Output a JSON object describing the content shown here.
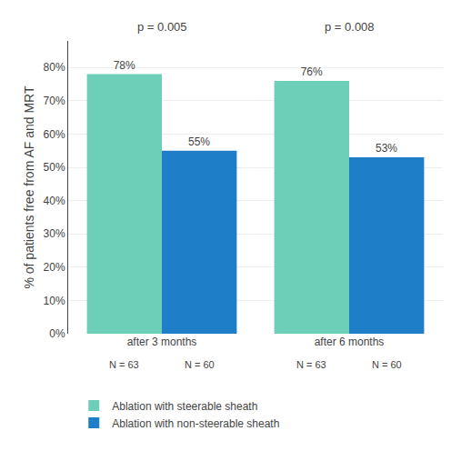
{
  "chart_data": {
    "type": "bar",
    "categories": [
      "after 3 months",
      "after 6 months"
    ],
    "series": [
      {
        "name": "Ablation with steerable sheath",
        "color": "#6DCFB8",
        "values": [
          78,
          76
        ],
        "value_labels": [
          "78%",
          "76%"
        ],
        "n_labels": [
          "N = 63",
          "N = 63"
        ]
      },
      {
        "name": "Ablation with non-steerable sheath",
        "color": "#1E7EC8",
        "values": [
          55,
          53
        ],
        "value_labels": [
          "55%",
          "53%"
        ],
        "n_labels": [
          "N = 60",
          "N = 60"
        ]
      }
    ],
    "annotations": [
      "p = 0.005",
      "p = 0.008"
    ],
    "ylabel": "% of patients free from AF and MRT",
    "ylim": [
      0,
      88
    ],
    "yticks": [
      {
        "value": 0,
        "label": "0%"
      },
      {
        "value": 10,
        "label": "10%"
      },
      {
        "value": 20,
        "label": "20%"
      },
      {
        "value": 30,
        "label": "30%"
      },
      {
        "value": 40,
        "label": "40%"
      },
      {
        "value": 50,
        "label": "50%"
      },
      {
        "value": 60,
        "label": "60%"
      },
      {
        "value": 70,
        "label": "70%"
      },
      {
        "value": 80,
        "label": "80%"
      }
    ],
    "grid": true,
    "data_labels": true,
    "legend": "bottom"
  }
}
